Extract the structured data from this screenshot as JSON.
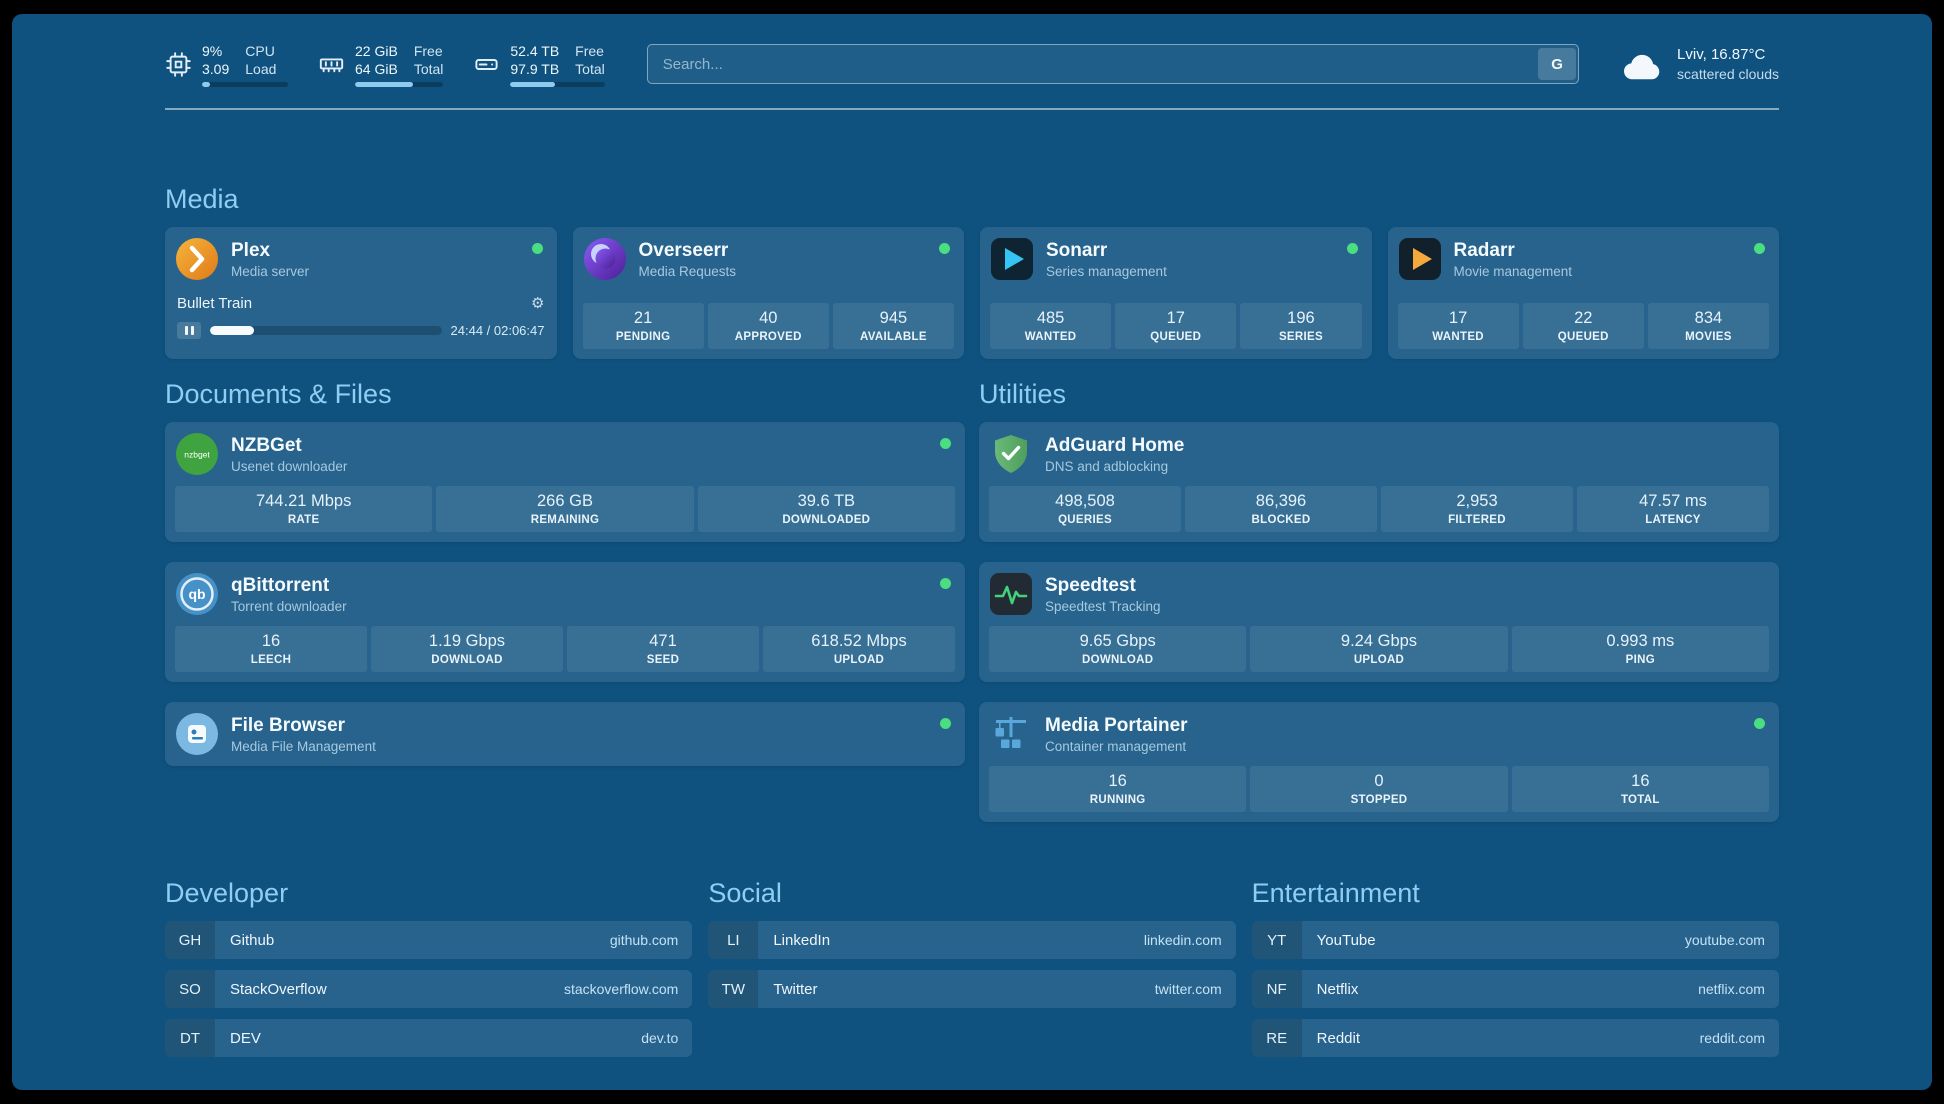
{
  "colors": {
    "background": "#0F527F",
    "section_heading": "#90CDF2",
    "status_online": "#4ADE80"
  },
  "topbar": {
    "cpu": {
      "values": [
        "9%",
        "3.09"
      ],
      "labels": [
        "CPU",
        "Load"
      ],
      "progress_pct": 9
    },
    "ram": {
      "values": [
        "22 GiB",
        "64 GiB"
      ],
      "labels": [
        "Free",
        "Total"
      ],
      "progress_pct": 66
    },
    "disk": {
      "values": [
        "52.4 TB",
        "97.9 TB"
      ],
      "labels": [
        "Free",
        "Total"
      ],
      "progress_pct": 47
    },
    "search": {
      "placeholder": "Search...",
      "button": "G"
    },
    "weather": {
      "location": "Lviv, 16.87°C",
      "condition": "scattered clouds"
    }
  },
  "sections": {
    "media": {
      "title": "Media",
      "cards": [
        {
          "name": "Plex",
          "subtitle": "Media server",
          "status": "online",
          "player": {
            "title": "Bullet Train",
            "time": "24:44 / 02:06:47",
            "progress_pct": 19
          }
        },
        {
          "name": "Overseerr",
          "subtitle": "Media Requests",
          "status": "online",
          "stats": [
            {
              "value": "21",
              "label": "PENDING"
            },
            {
              "value": "40",
              "label": "APPROVED"
            },
            {
              "value": "945",
              "label": "AVAILABLE"
            }
          ]
        },
        {
          "name": "Sonarr",
          "subtitle": "Series management",
          "status": "online",
          "stats": [
            {
              "value": "485",
              "label": "WANTED"
            },
            {
              "value": "17",
              "label": "QUEUED"
            },
            {
              "value": "196",
              "label": "SERIES"
            }
          ]
        },
        {
          "name": "Radarr",
          "subtitle": "Movie management",
          "status": "online",
          "stats": [
            {
              "value": "17",
              "label": "WANTED"
            },
            {
              "value": "22",
              "label": "QUEUED"
            },
            {
              "value": "834",
              "label": "MOVIES"
            }
          ]
        }
      ]
    },
    "documents": {
      "title": "Documents & Files",
      "cards": [
        {
          "name": "NZBGet",
          "subtitle": "Usenet downloader",
          "status": "online",
          "stats": [
            {
              "value": "744.21 Mbps",
              "label": "RATE"
            },
            {
              "value": "266 GB",
              "label": "REMAINING"
            },
            {
              "value": "39.6 TB",
              "label": "DOWNLOADED"
            }
          ]
        },
        {
          "name": "qBittorrent",
          "subtitle": "Torrent downloader",
          "status": "online",
          "stats": [
            {
              "value": "16",
              "label": "LEECH"
            },
            {
              "value": "1.19 Gbps",
              "label": "DOWNLOAD"
            },
            {
              "value": "471",
              "label": "SEED"
            },
            {
              "value": "618.52 Mbps",
              "label": "UPLOAD"
            }
          ]
        },
        {
          "name": "File Browser",
          "subtitle": "Media File Management",
          "status": "online"
        }
      ]
    },
    "utilities": {
      "title": "Utilities",
      "cards": [
        {
          "name": "AdGuard Home",
          "subtitle": "DNS and adblocking",
          "stats": [
            {
              "value": "498,508",
              "label": "QUERIES"
            },
            {
              "value": "86,396",
              "label": "BLOCKED"
            },
            {
              "value": "2,953",
              "label": "FILTERED"
            },
            {
              "value": "47.57 ms",
              "label": "LATENCY"
            }
          ]
        },
        {
          "name": "Speedtest",
          "subtitle": "Speedtest Tracking",
          "stats": [
            {
              "value": "9.65 Gbps",
              "label": "DOWNLOAD"
            },
            {
              "value": "9.24 Gbps",
              "label": "UPLOAD"
            },
            {
              "value": "0.993 ms",
              "label": "PING"
            }
          ]
        },
        {
          "name": "Media Portainer",
          "subtitle": "Container management",
          "status": "online",
          "stats": [
            {
              "value": "16",
              "label": "RUNNING"
            },
            {
              "value": "0",
              "label": "STOPPED"
            },
            {
              "value": "16",
              "label": "TOTAL"
            }
          ]
        }
      ]
    }
  },
  "bookmarks": [
    {
      "title": "Developer",
      "items": [
        {
          "abbr": "GH",
          "name": "Github",
          "url": "github.com"
        },
        {
          "abbr": "SO",
          "name": "StackOverflow",
          "url": "stackoverflow.com"
        },
        {
          "abbr": "DT",
          "name": "DEV",
          "url": "dev.to"
        }
      ]
    },
    {
      "title": "Social",
      "items": [
        {
          "abbr": "LI",
          "name": "LinkedIn",
          "url": "linkedin.com"
        },
        {
          "abbr": "TW",
          "name": "Twitter",
          "url": "twitter.com"
        }
      ]
    },
    {
      "title": "Entertainment",
      "items": [
        {
          "abbr": "YT",
          "name": "YouTube",
          "url": "youtube.com"
        },
        {
          "abbr": "NF",
          "name": "Netflix",
          "url": "netflix.com"
        },
        {
          "abbr": "RE",
          "name": "Reddit",
          "url": "reddit.com"
        }
      ]
    }
  ]
}
